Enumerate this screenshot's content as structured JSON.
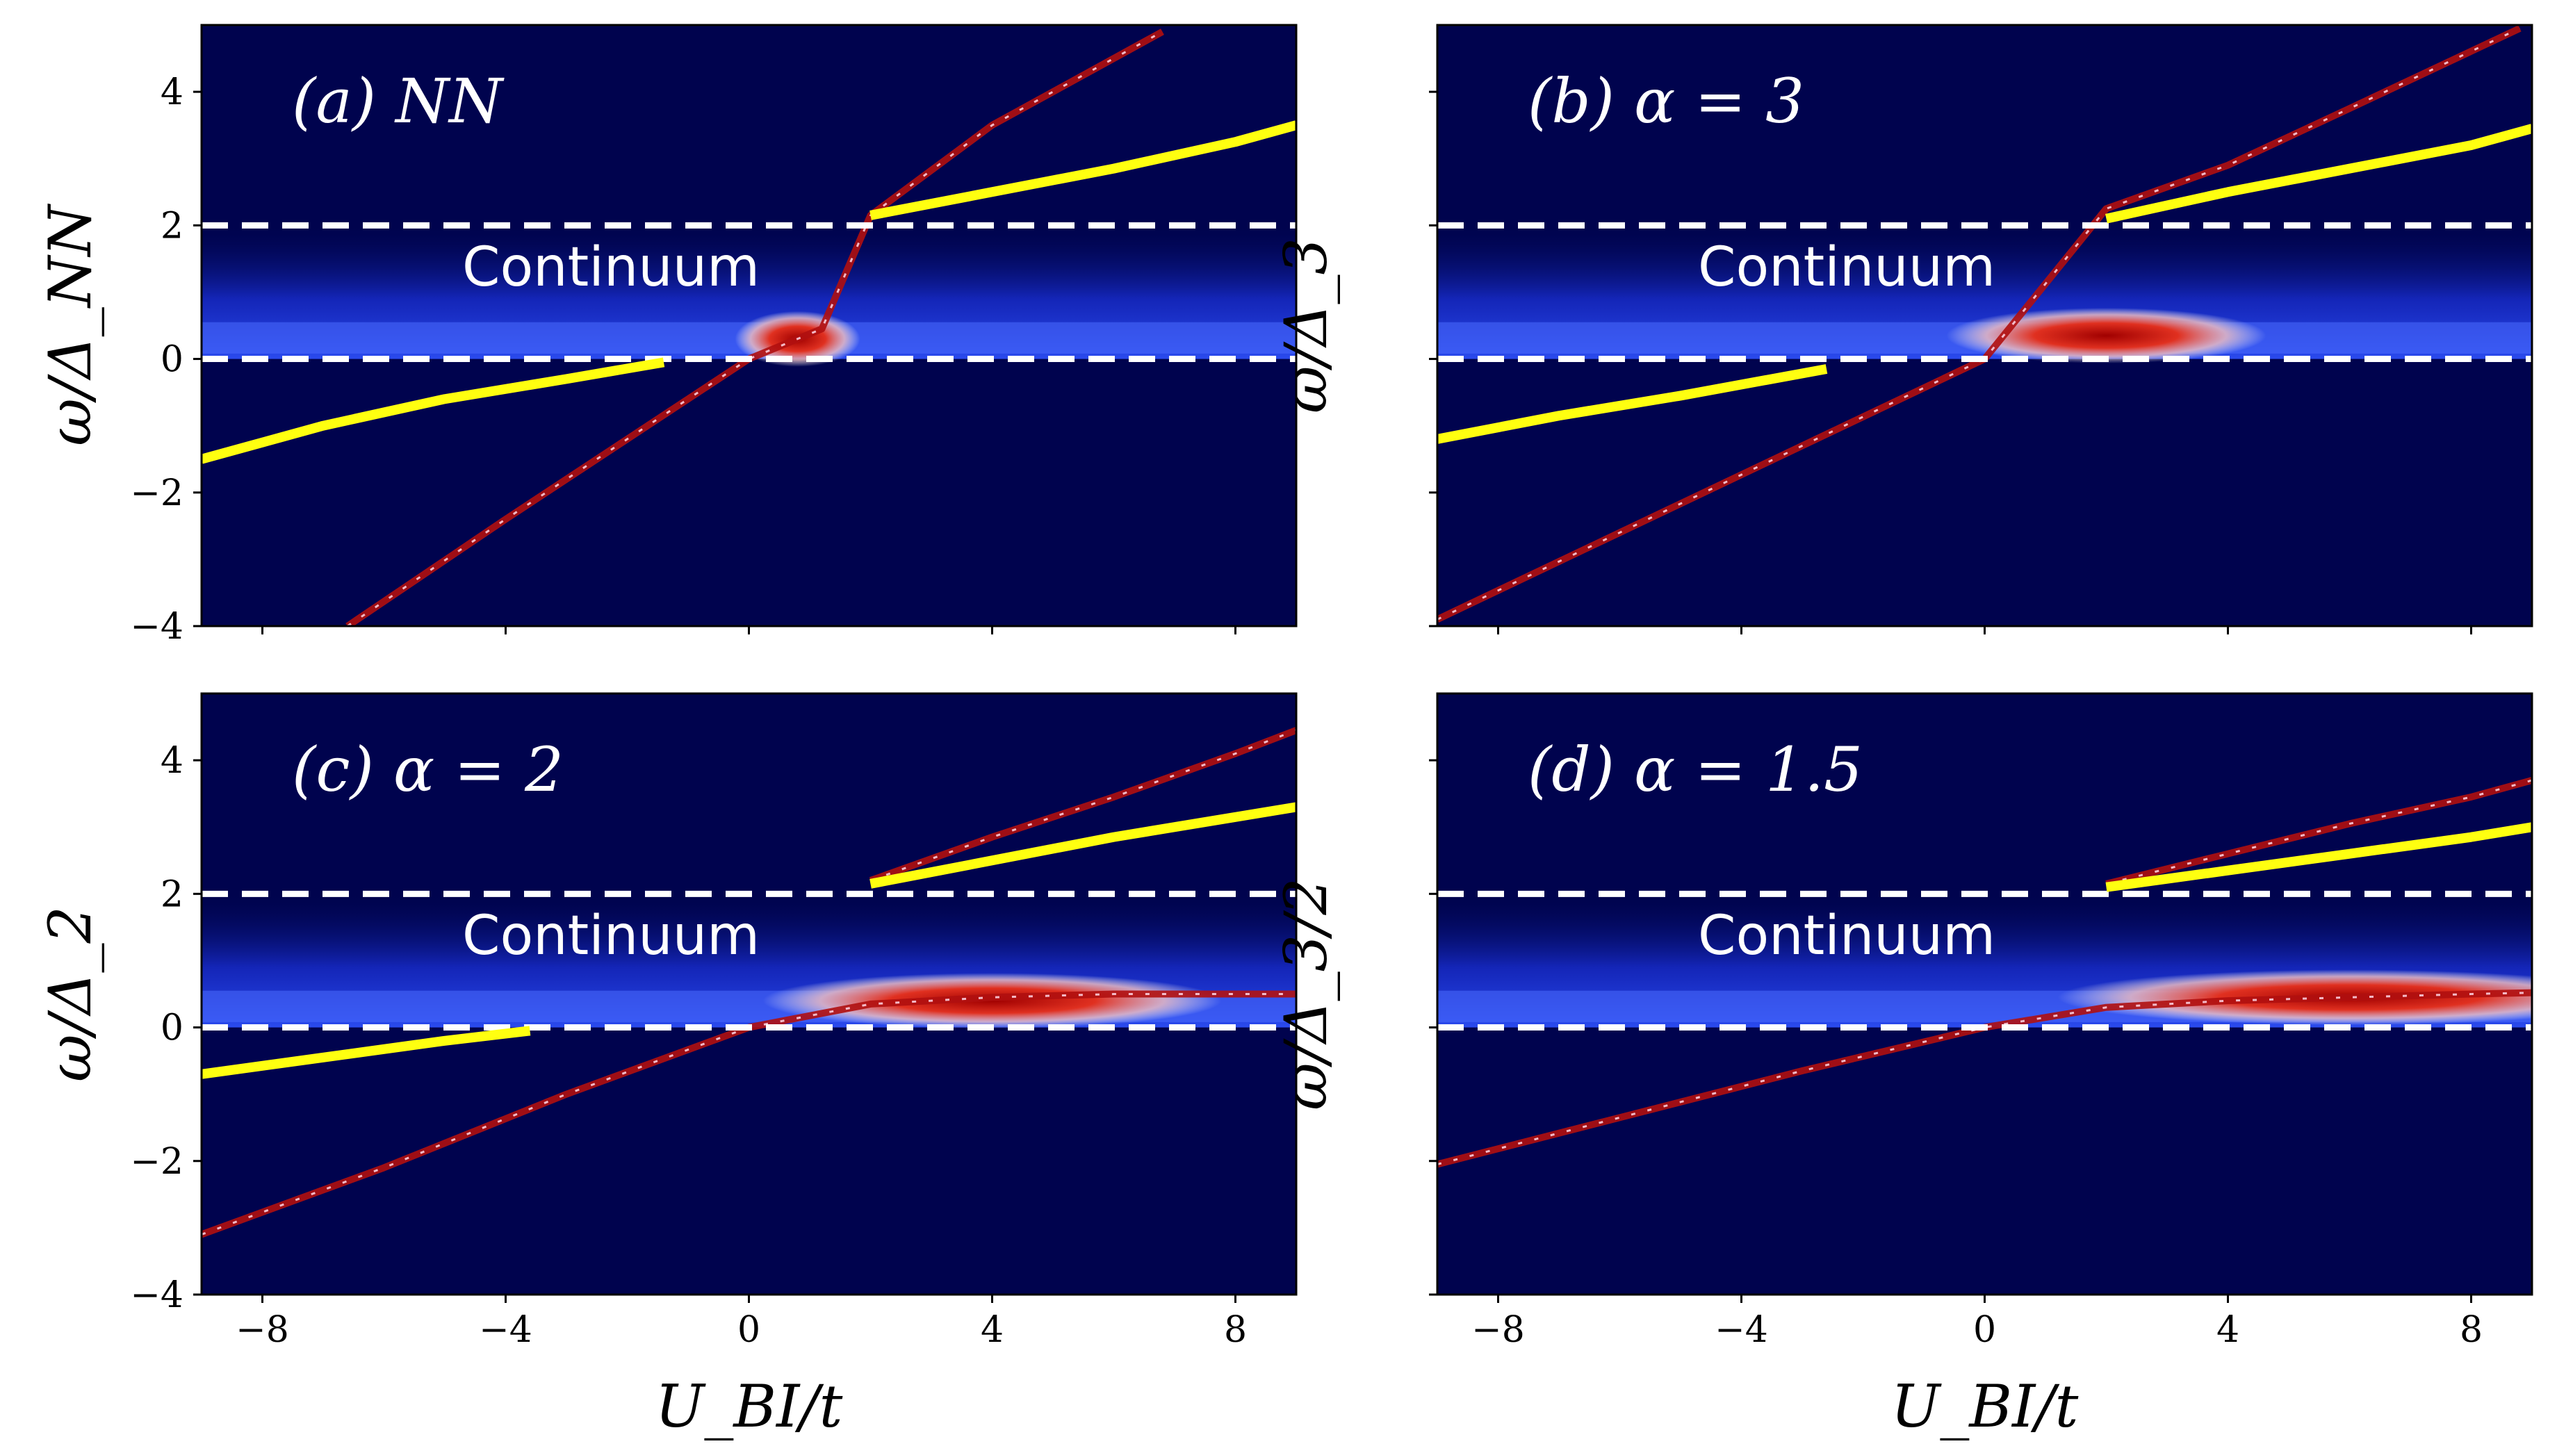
{
  "chart_data": {
    "type": "heatmap",
    "shared_xlabel": "U_BI/t",
    "panels": [
      {
        "label": "(a)  NN",
        "ylabel": "ω/Δ_NN",
        "continuum_label": "Continuum",
        "xlim": [
          -9,
          9
        ],
        "ylim": [
          -4,
          5
        ],
        "xticks": [
          -8,
          -4,
          0,
          4,
          8
        ],
        "yticks": [
          -4,
          -2,
          0,
          2,
          4
        ],
        "dashed_lines_y": [
          0,
          2
        ],
        "continuum_band": [
          0,
          2
        ],
        "yellow_series": [
          {
            "name": "lower",
            "x": [
              -9,
              -7,
              -5,
              -3,
              -1.4
            ],
            "y": [
              -1.5,
              -1.0,
              -0.6,
              -0.3,
              -0.05
            ]
          },
          {
            "name": "upper",
            "x": [
              2,
              4,
              6,
              8,
              9
            ],
            "y": [
              2.15,
              2.5,
              2.85,
              3.25,
              3.5
            ]
          }
        ],
        "bright_series": [
          {
            "name": "bound_state",
            "x": [
              -6.6,
              -4,
              -2,
              0,
              1.2,
              2,
              4,
              6.8
            ],
            "y": [
              -4.0,
              -2.4,
              -1.2,
              0.0,
              0.45,
              2.15,
              3.5,
              4.9
            ]
          }
        ],
        "hot_spot": {
          "x": 0.8,
          "y": 0.3
        }
      },
      {
        "label": "(b)  α = 3",
        "ylabel": "ω/Δ_3",
        "continuum_label": "Continuum",
        "xlim": [
          -9,
          9
        ],
        "ylim": [
          -4,
          5
        ],
        "xticks": [
          -8,
          -4,
          0,
          4,
          8
        ],
        "yticks": [
          -4,
          -2,
          0,
          2,
          4
        ],
        "dashed_lines_y": [
          0,
          2
        ],
        "continuum_band": [
          0,
          2
        ],
        "yellow_series": [
          {
            "name": "lower",
            "x": [
              -9,
              -7,
              -5,
              -2.6
            ],
            "y": [
              -1.2,
              -0.85,
              -0.55,
              -0.15
            ]
          },
          {
            "name": "upper",
            "x": [
              2,
              4,
              6,
              8,
              9
            ],
            "y": [
              2.1,
              2.5,
              2.85,
              3.2,
              3.45
            ]
          }
        ],
        "bright_series": [
          {
            "name": "bound_state",
            "x": [
              -9,
              -6,
              -3,
              0,
              2,
              4,
              6,
              8.8
            ],
            "y": [
              -3.9,
              -2.6,
              -1.3,
              0.0,
              2.25,
              2.9,
              3.75,
              4.95
            ]
          }
        ],
        "hot_spot": {
          "x": 2.0,
          "y": 0.35
        }
      },
      {
        "label": "(c)  α = 2",
        "ylabel": "ω/Δ_2",
        "continuum_label": "Continuum",
        "xlim": [
          -9,
          9
        ],
        "ylim": [
          -4,
          5
        ],
        "xticks": [
          -8,
          -4,
          0,
          4,
          8
        ],
        "yticks": [
          -4,
          -2,
          0,
          2,
          4
        ],
        "dashed_lines_y": [
          0,
          2
        ],
        "continuum_band": [
          0,
          2
        ],
        "yellow_series": [
          {
            "name": "lower",
            "x": [
              -9,
              -7,
              -5,
              -3.6
            ],
            "y": [
              -0.7,
              -0.45,
              -0.2,
              -0.05
            ]
          },
          {
            "name": "upper",
            "x": [
              2,
              4,
              6,
              8,
              9
            ],
            "y": [
              2.15,
              2.5,
              2.85,
              3.15,
              3.3
            ]
          }
        ],
        "bright_series": [
          {
            "name": "bound_state",
            "x": [
              -9,
              -6,
              -3,
              0,
              2,
              4,
              6,
              8,
              9
            ],
            "y": [
              -3.1,
              -2.1,
              -1.0,
              0.0,
              0.35,
              0.45,
              0.5,
              0.5,
              0.5
            ]
          },
          {
            "name": "upper_branch",
            "x": [
              2,
              4,
              6,
              8,
              9
            ],
            "y": [
              2.2,
              2.85,
              3.45,
              4.1,
              4.45
            ]
          }
        ],
        "hot_spot": {
          "x": 4.0,
          "y": 0.4
        }
      },
      {
        "label": "(d)  α = 1.5",
        "ylabel": "ω/Δ_3/2",
        "continuum_label": "Continuum",
        "xlim": [
          -9,
          9
        ],
        "ylim": [
          -4,
          5
        ],
        "xticks": [
          -8,
          -4,
          0,
          4,
          8
        ],
        "yticks": [
          -4,
          -2,
          0,
          2,
          4
        ],
        "dashed_lines_y": [
          0,
          2
        ],
        "continuum_band": [
          0,
          2
        ],
        "yellow_series": [
          {
            "name": "upper",
            "x": [
              2,
              4,
              6,
              8,
              9
            ],
            "y": [
              2.1,
              2.35,
              2.6,
              2.85,
              3.0
            ]
          }
        ],
        "bright_series": [
          {
            "name": "bound_state",
            "x": [
              -9,
              -6,
              -3,
              0,
              2,
              4,
              6,
              8,
              9
            ],
            "y": [
              -2.05,
              -1.35,
              -0.65,
              0.0,
              0.3,
              0.4,
              0.45,
              0.5,
              0.52
            ]
          },
          {
            "name": "upper_branch",
            "x": [
              2,
              4,
              6,
              8,
              9
            ],
            "y": [
              2.15,
              2.6,
              3.05,
              3.45,
              3.7
            ]
          }
        ],
        "hot_spot": {
          "x": 6.0,
          "y": 0.45
        }
      }
    ]
  }
}
